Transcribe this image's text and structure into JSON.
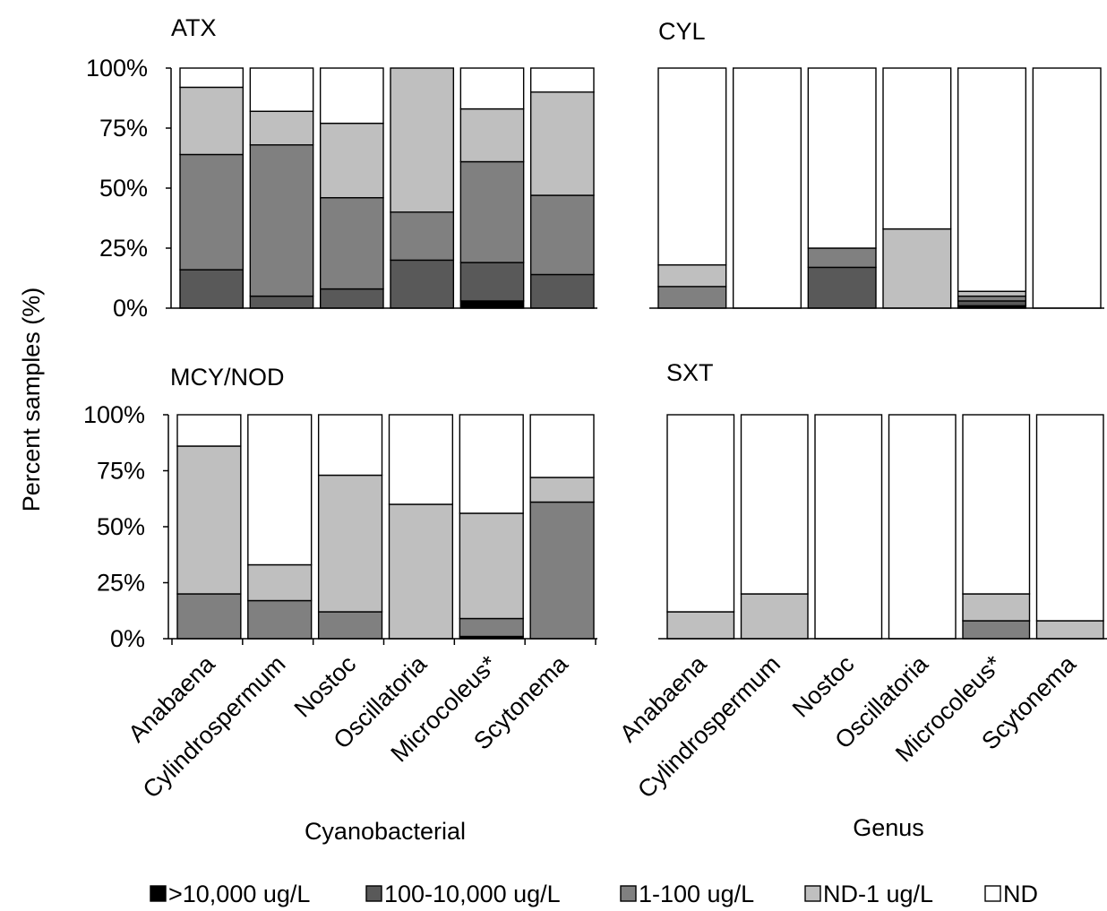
{
  "chart_data": {
    "type": "bar",
    "stacked": true,
    "normalized": true,
    "y_axis_label": "Percent samples (%)",
    "x_axis_label_line1": "Cyanobacterial",
    "x_axis_label_line2": "Genus",
    "y_ticks": [
      "0%",
      "25%",
      "50%",
      "75%",
      "100%"
    ],
    "ylim": [
      0,
      100
    ],
    "categories": [
      "Anabaena",
      "Cylindrospermum",
      "Nostoc",
      "Oscillatoria",
      "Microcoleus*",
      "Scytonema"
    ],
    "legend": [
      {
        "label": ">10,000 ug/L",
        "color": "#000000"
      },
      {
        "label": "100-10,000 ug/L",
        "color": "#595959"
      },
      {
        "label": "1-100 ug/L",
        "color": "#808080"
      },
      {
        "label": "ND-1 ug/L",
        "color": "#bfbfbf"
      },
      {
        "label": "ND",
        "color": "#ffffff"
      }
    ],
    "panels": [
      {
        "title": "ATX",
        "series": [
          {
            "name": ">10,000 ug/L",
            "values": [
              0,
              0,
              0,
              0,
              3,
              0
            ]
          },
          {
            "name": "100-10,000 ug/L",
            "values": [
              16,
              5,
              8,
              20,
              16,
              14
            ]
          },
          {
            "name": "1-100 ug/L",
            "values": [
              48,
              63,
              38,
              20,
              42,
              33
            ]
          },
          {
            "name": "ND-1 ug/L",
            "values": [
              28,
              14,
              31,
              60,
              22,
              43
            ]
          },
          {
            "name": "ND",
            "values": [
              8,
              18,
              23,
              0,
              17,
              10
            ]
          }
        ]
      },
      {
        "title": "CYL",
        "series": [
          {
            "name": ">10,000 ug/L",
            "values": [
              0,
              0,
              0,
              0,
              1,
              0
            ]
          },
          {
            "name": "100-10,000 ug/L",
            "values": [
              0,
              0,
              17,
              0,
              2,
              0
            ]
          },
          {
            "name": "1-100 ug/L",
            "values": [
              9,
              0,
              8,
              0,
              2,
              0
            ]
          },
          {
            "name": "ND-1 ug/L",
            "values": [
              9,
              0,
              0,
              33,
              2,
              0
            ]
          },
          {
            "name": "ND",
            "values": [
              82,
              100,
              75,
              67,
              93,
              100
            ]
          }
        ]
      },
      {
        "title": "MCY/NOD",
        "series": [
          {
            "name": ">10,000 ug/L",
            "values": [
              0,
              0,
              0,
              0,
              1,
              0
            ]
          },
          {
            "name": "100-10,000 ug/L",
            "values": [
              0,
              0,
              0,
              0,
              0,
              0
            ]
          },
          {
            "name": "1-100 ug/L",
            "values": [
              20,
              17,
              12,
              0,
              8,
              61
            ]
          },
          {
            "name": "ND-1 ug/L",
            "values": [
              66,
              16,
              61,
              60,
              47,
              11
            ]
          },
          {
            "name": "ND",
            "values": [
              14,
              67,
              27,
              40,
              44,
              28
            ]
          }
        ]
      },
      {
        "title": "SXT",
        "series": [
          {
            "name": ">10,000 ug/L",
            "values": [
              0,
              0,
              0,
              0,
              0,
              0
            ]
          },
          {
            "name": "100-10,000 ug/L",
            "values": [
              0,
              0,
              0,
              0,
              0,
              0
            ]
          },
          {
            "name": "1-100 ug/L",
            "values": [
              0,
              0,
              0,
              0,
              8,
              0
            ]
          },
          {
            "name": "ND-1 ug/L",
            "values": [
              12,
              20,
              0,
              0,
              12,
              8
            ]
          },
          {
            "name": "ND",
            "values": [
              88,
              80,
              100,
              100,
              80,
              92
            ]
          }
        ]
      }
    ]
  }
}
